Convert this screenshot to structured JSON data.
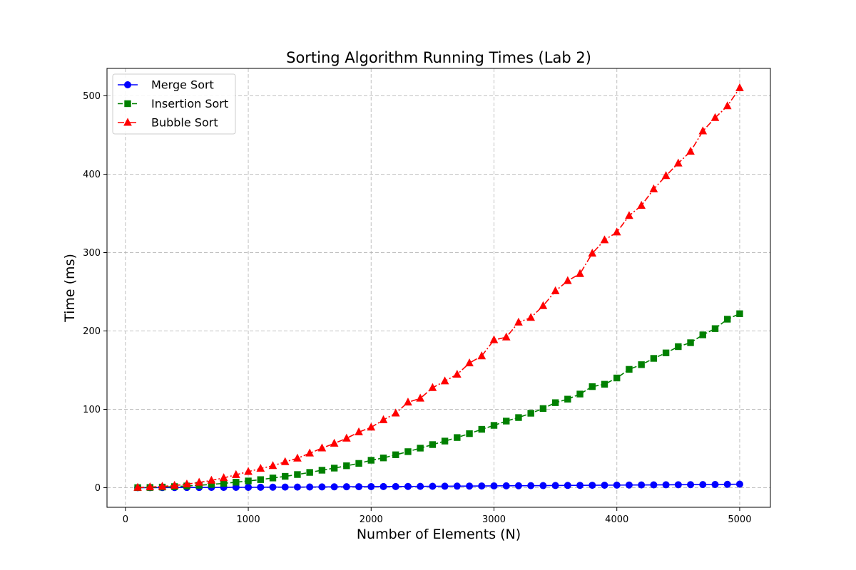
{
  "chart_data": {
    "type": "line",
    "title": "Sorting Algorithm Running Times (Lab 2)",
    "xlabel": "Number of Elements (N)",
    "ylabel": "Time (ms)",
    "xlim": [
      -150,
      5250
    ],
    "ylim": [
      -25,
      535
    ],
    "xticks": [
      0,
      1000,
      2000,
      3000,
      4000,
      5000
    ],
    "yticks": [
      0,
      100,
      200,
      300,
      400,
      500
    ],
    "grid": true,
    "legend_position": "top-left",
    "x": [
      100,
      200,
      300,
      400,
      500,
      600,
      700,
      800,
      900,
      1000,
      1100,
      1200,
      1300,
      1400,
      1500,
      1600,
      1700,
      1800,
      1900,
      2000,
      2100,
      2200,
      2300,
      2400,
      2500,
      2600,
      2700,
      2800,
      2900,
      3000,
      3100,
      3200,
      3300,
      3400,
      3500,
      3600,
      3700,
      3800,
      3900,
      4000,
      4100,
      4200,
      4300,
      4400,
      4500,
      4600,
      4700,
      4800,
      4900,
      5000
    ],
    "series": [
      {
        "name": "Merge Sort",
        "color": "#0000ff",
        "marker": "circle",
        "linestyle": "solid",
        "values": [
          0.1,
          0.1,
          0.2,
          0.2,
          0.3,
          0.3,
          0.4,
          0.4,
          0.5,
          0.5,
          0.6,
          0.7,
          0.8,
          0.8,
          0.9,
          1.0,
          1.1,
          1.2,
          1.3,
          1.4,
          1.5,
          1.5,
          1.6,
          1.7,
          1.8,
          1.9,
          2.0,
          2.1,
          2.2,
          2.3,
          2.4,
          2.5,
          2.6,
          2.7,
          2.8,
          2.9,
          3.0,
          3.1,
          3.2,
          3.3,
          3.4,
          3.5,
          3.6,
          3.7,
          3.8,
          3.9,
          4.0,
          4.1,
          4.3,
          4.5
        ]
      },
      {
        "name": "Insertion Sort",
        "color": "#008000",
        "marker": "square",
        "linestyle": "dashed",
        "values": [
          0.1,
          0.3,
          0.8,
          1.4,
          2.2,
          3.1,
          4.2,
          5.5,
          7.0,
          8.6,
          10.3,
          12.4,
          14.5,
          16.8,
          19.5,
          22.3,
          25.0,
          28.0,
          31.0,
          35.0,
          38.0,
          42.0,
          46.0,
          50.5,
          55.0,
          59.5,
          64.0,
          69.0,
          74.5,
          79.5,
          85.0,
          89.5,
          95.0,
          101.0,
          108.5,
          113.0,
          119.5,
          129.0,
          132.0,
          140.0,
          151.0,
          157.0,
          165.0,
          172.0,
          180.0,
          185.0,
          195.0,
          203.0,
          215.0,
          222.0
        ]
      },
      {
        "name": "Bubble Sort",
        "color": "#ff0000",
        "marker": "triangle",
        "linestyle": "dashdot",
        "values": [
          0.2,
          0.8,
          1.6,
          2.8,
          4.5,
          6.7,
          9.3,
          12.5,
          16.5,
          20.5,
          24.5,
          28.0,
          33.0,
          37.5,
          44.0,
          50.5,
          56.5,
          63.0,
          71.0,
          77.0,
          86.5,
          95.0,
          109.0,
          114.0,
          127.5,
          136.0,
          144.5,
          159.0,
          168.0,
          188.5,
          192.0,
          211.0,
          217.0,
          232.0,
          251.0,
          264.0,
          273.0,
          299.0,
          316.0,
          326.0,
          347.0,
          360.0,
          381.0,
          398.0,
          414.0,
          429.0,
          455.0,
          472.0,
          487.0,
          510.0
        ]
      }
    ]
  }
}
